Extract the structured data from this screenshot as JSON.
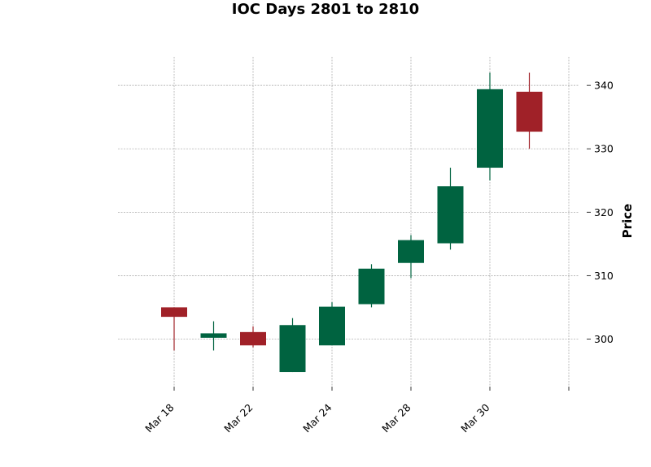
{
  "chart_data": {
    "type": "candlestick",
    "title": "IOC Days 2801 to 2810",
    "xlabel": "",
    "ylabel": "Price",
    "ylim": [
      292.5,
      344.5
    ],
    "yticks": [
      300,
      310,
      320,
      330,
      340
    ],
    "x_tick_labels": [
      "Mar 18",
      "Mar 22",
      "Mar 24",
      "Mar 28",
      "Mar 30",
      ""
    ],
    "up_color": "#006340",
    "down_color": "#a02128",
    "grid": true,
    "candles": [
      {
        "open": 305.0,
        "high": 305.0,
        "low": 298.2,
        "close": 303.5
      },
      {
        "open": 300.2,
        "high": 302.8,
        "low": 298.2,
        "close": 300.9
      },
      {
        "open": 301.1,
        "high": 302.0,
        "low": 298.7,
        "close": 299.0
      },
      {
        "open": 294.8,
        "high": 303.3,
        "low": 294.8,
        "close": 302.2
      },
      {
        "open": 299.0,
        "high": 305.8,
        "low": 299.0,
        "close": 305.1
      },
      {
        "open": 305.5,
        "high": 311.8,
        "low": 305.0,
        "close": 311.1
      },
      {
        "open": 312.0,
        "high": 316.4,
        "low": 309.6,
        "close": 315.6
      },
      {
        "open": 315.1,
        "high": 327.0,
        "low": 314.1,
        "close": 324.1
      },
      {
        "open": 327.0,
        "high": 342.0,
        "low": 325.0,
        "close": 339.4
      },
      {
        "open": 339.0,
        "high": 342.0,
        "low": 330.0,
        "close": 332.7
      }
    ]
  }
}
